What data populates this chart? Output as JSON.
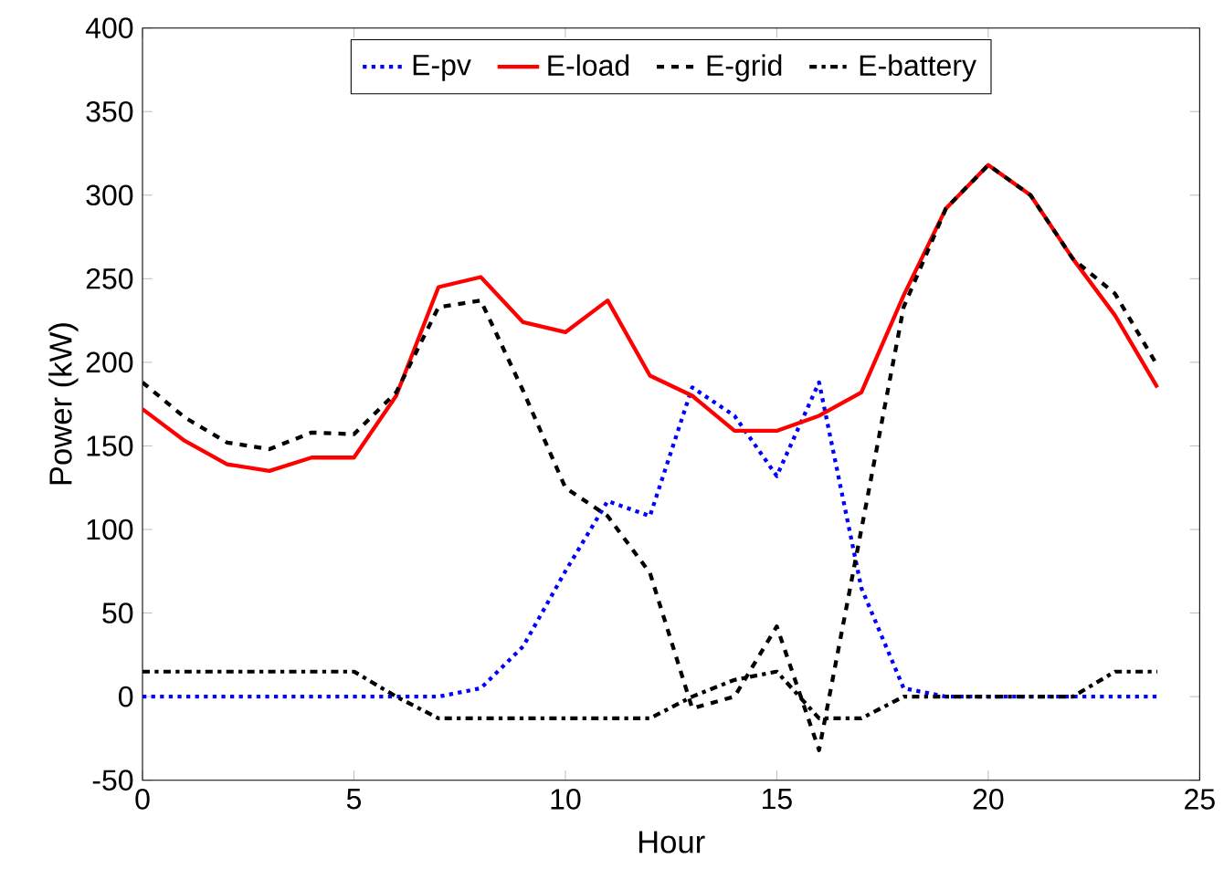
{
  "chart_data": {
    "type": "line",
    "xlabel": "Hour",
    "ylabel": "Power (kW)",
    "x": [
      0,
      1,
      2,
      3,
      4,
      5,
      6,
      7,
      8,
      9,
      10,
      11,
      12,
      13,
      14,
      15,
      16,
      17,
      18,
      19,
      20,
      21,
      22,
      23,
      24
    ],
    "series": [
      {
        "name": "E-pv",
        "color": "#0000ff",
        "line_style": "dotted",
        "values": [
          0,
          0,
          0,
          0,
          0,
          0,
          0,
          0,
          5,
          30,
          75,
          117,
          108,
          185,
          168,
          132,
          188,
          65,
          5,
          0,
          0,
          0,
          0,
          0,
          0
        ]
      },
      {
        "name": "E-load",
        "color": "#ff0000",
        "line_style": "solid",
        "values": [
          172,
          153,
          139,
          135,
          143,
          143,
          180,
          245,
          251,
          224,
          218,
          237,
          192,
          180,
          159,
          159,
          168,
          182,
          240,
          292,
          318,
          300,
          262,
          228,
          185
        ]
      },
      {
        "name": "E-grid",
        "color": "#000000",
        "line_style": "dashed",
        "values": [
          188,
          167,
          152,
          148,
          158,
          157,
          182,
          233,
          237,
          183,
          125,
          108,
          74,
          -7,
          0,
          42,
          -32,
          100,
          233,
          292,
          318,
          300,
          262,
          241,
          198
        ]
      },
      {
        "name": "E-battery",
        "color": "#000000",
        "line_style": "dashdot",
        "values": [
          15,
          15,
          15,
          15,
          15,
          15,
          0,
          -13,
          -13,
          -13,
          -13,
          -13,
          -13,
          0,
          10,
          15,
          -13,
          -13,
          0,
          0,
          0,
          0,
          0,
          15,
          15
        ]
      }
    ],
    "xlim": [
      0,
      25
    ],
    "ylim": [
      -50,
      400
    ],
    "xticks": [
      0,
      5,
      10,
      15,
      20,
      25
    ],
    "yticks": [
      -50,
      0,
      50,
      100,
      150,
      200,
      250,
      300,
      350,
      400
    ],
    "grid": false,
    "legend": "top",
    "marker": "none"
  }
}
